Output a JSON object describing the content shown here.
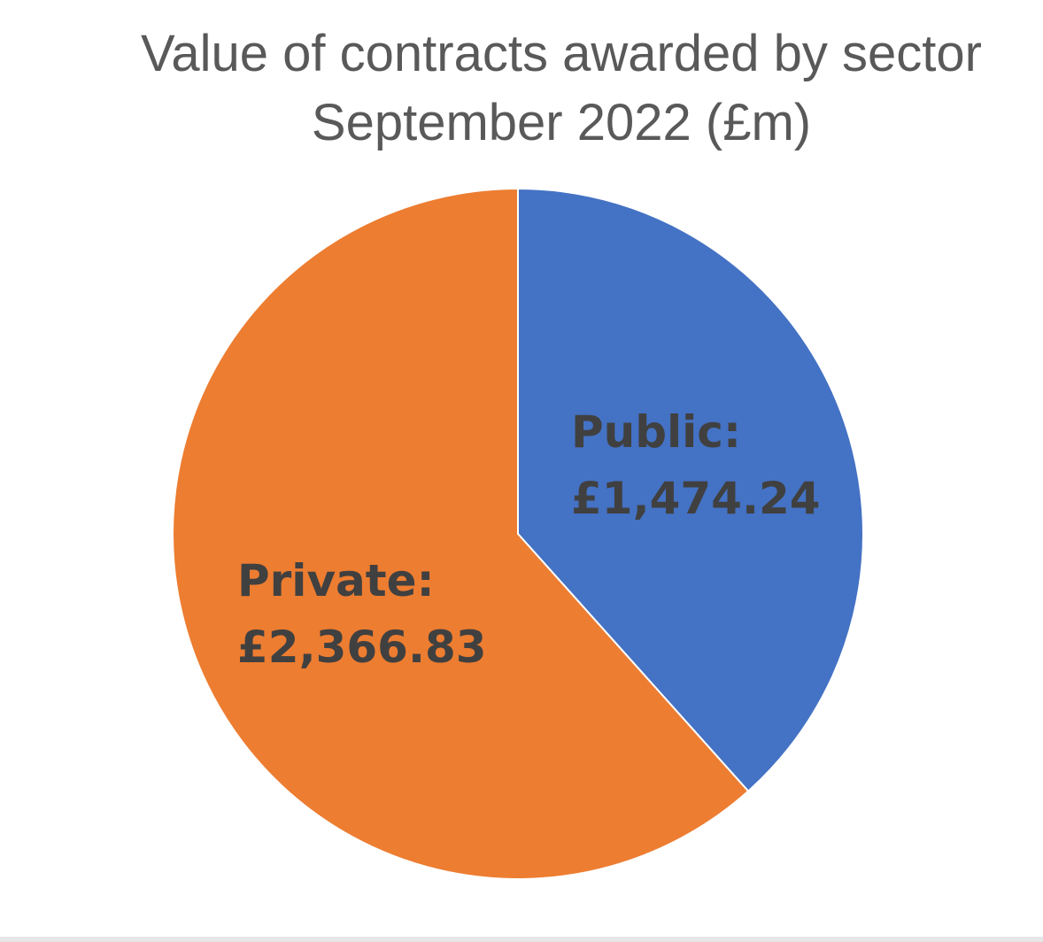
{
  "chart_data": {
    "type": "pie",
    "title": "Value of contracts awarded by sector",
    "subtitle": "September 2022 (£m)",
    "categories": [
      "Public",
      "Private"
    ],
    "values": [
      1474.24,
      2366.83
    ],
    "labels": [
      {
        "name": "Public:",
        "value": "£1,474.24"
      },
      {
        "name": "Private:",
        "value": "£2,366.83"
      }
    ],
    "colors": [
      "#4472C4",
      "#ED7D31"
    ],
    "start_angle": "12 o'clock",
    "direction": "clockwise",
    "legend": "none"
  }
}
